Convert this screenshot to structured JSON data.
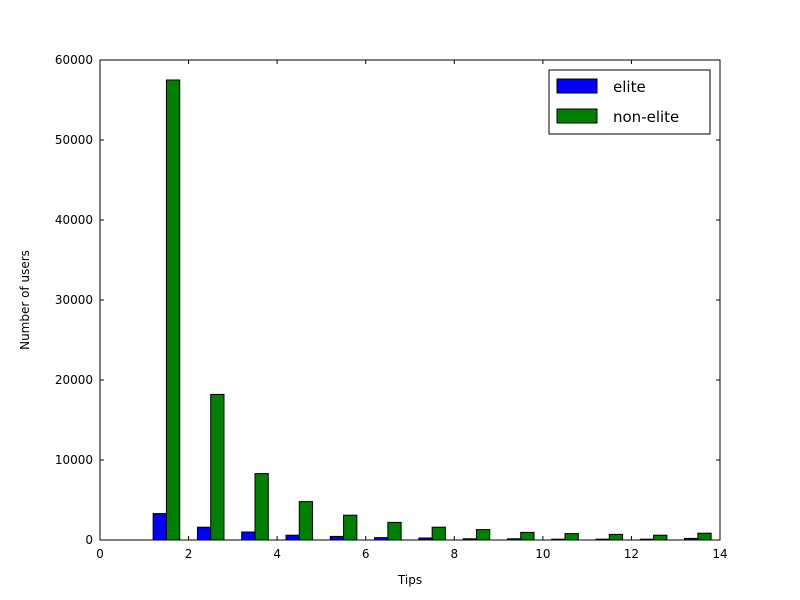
{
  "chart_data": {
    "type": "bar",
    "title": "",
    "xlabel": "Tips",
    "ylabel": "Number of users",
    "xlim": [
      0,
      14
    ],
    "ylim": [
      0,
      60000
    ],
    "xticks": [
      0,
      2,
      4,
      6,
      8,
      10,
      12,
      14
    ],
    "yticks": [
      0,
      10000,
      20000,
      30000,
      40000,
      50000,
      60000
    ],
    "grid": false,
    "legend_position": "top-right",
    "bar_width": 0.3,
    "series": [
      {
        "name": "elite",
        "color": "#0000ff",
        "x": [
          1.2,
          2.2,
          3.2,
          4.2,
          5.2,
          6.2,
          7.2,
          8.2,
          9.2,
          10.2,
          11.2,
          12.2,
          13.2
        ],
        "values": [
          3300,
          1600,
          1000,
          600,
          450,
          300,
          250,
          150,
          150,
          100,
          100,
          100,
          200
        ]
      },
      {
        "name": "non-elite",
        "color": "#008000",
        "x": [
          1.5,
          2.5,
          3.5,
          4.5,
          5.5,
          6.5,
          7.5,
          8.5,
          9.5,
          10.5,
          11.5,
          12.5,
          13.5
        ],
        "values": [
          57500,
          18200,
          8300,
          4800,
          3100,
          2200,
          1600,
          1300,
          950,
          800,
          700,
          600,
          850
        ]
      }
    ]
  }
}
